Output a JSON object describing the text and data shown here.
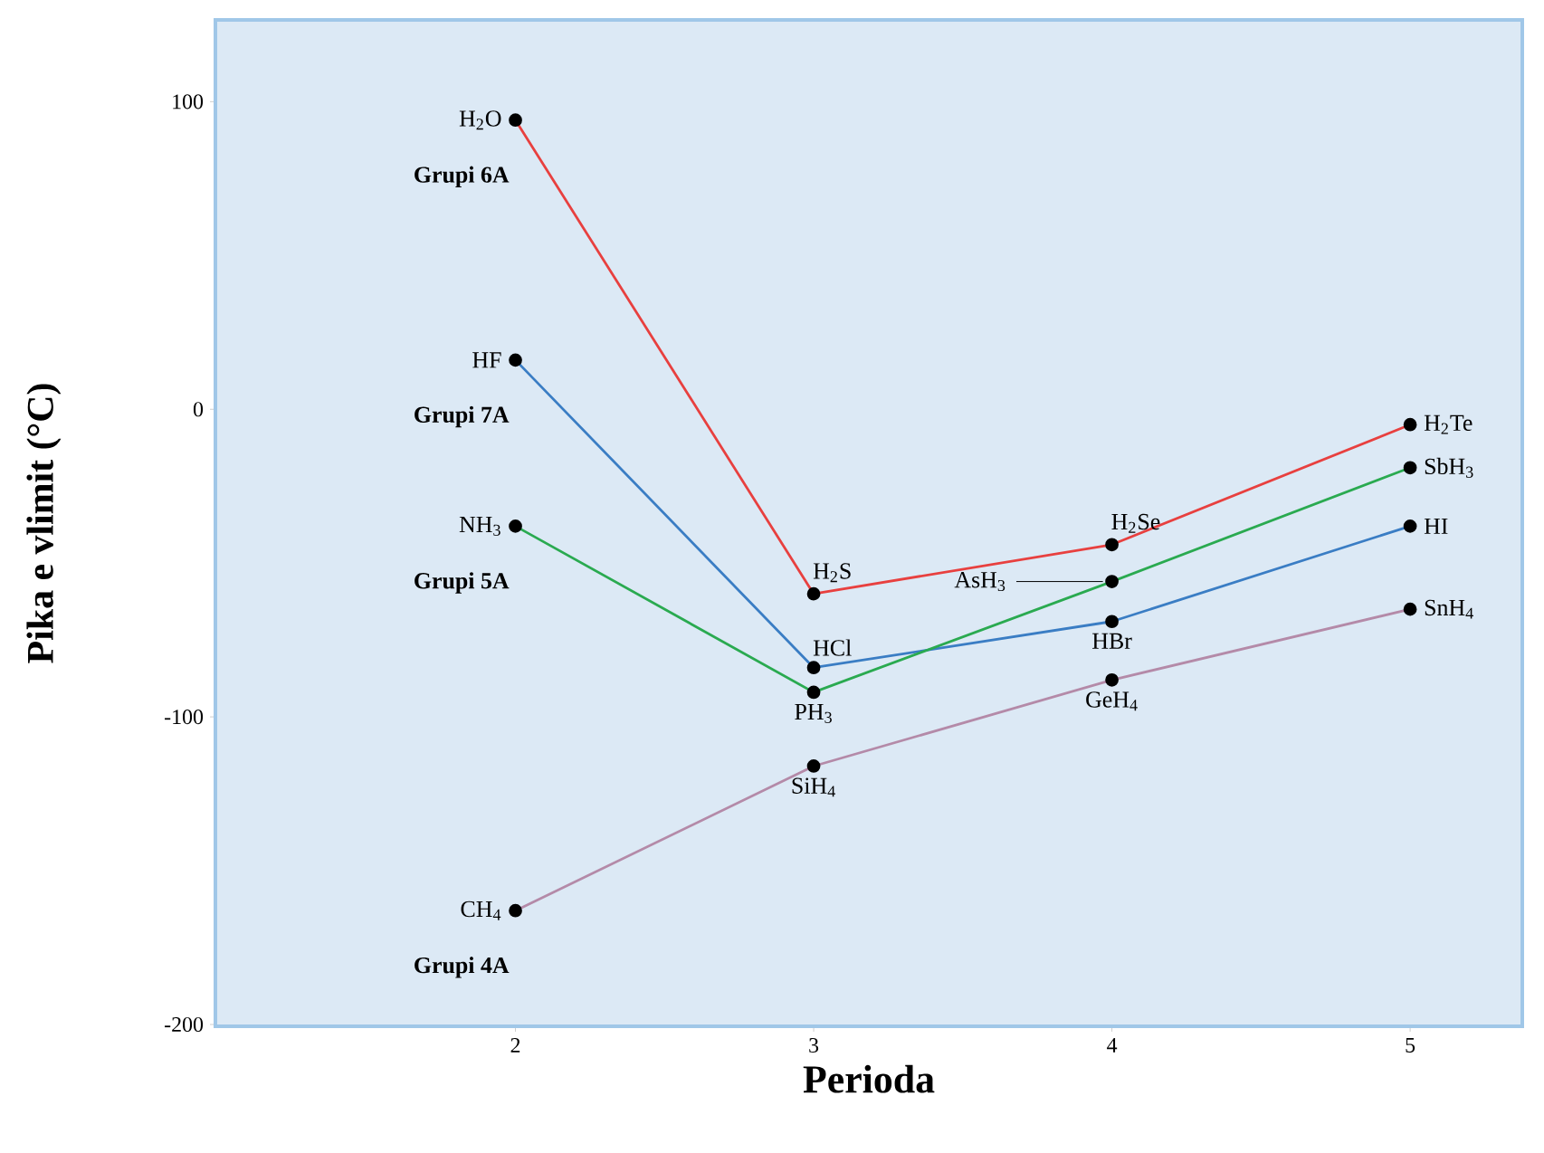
{
  "chart_data": {
    "type": "line",
    "xlabel": "Perioda",
    "ylabel": "Pika e vlimit (°C)",
    "x": [
      2,
      3,
      4,
      5
    ],
    "xlim": [
      1,
      5.37
    ],
    "ylim": [
      -200,
      126
    ],
    "xticks": [
      2,
      3,
      4,
      5
    ],
    "yticks": [
      -200,
      -100,
      0,
      100
    ],
    "marker": "circle",
    "series": [
      {
        "name": "Grupi 6A",
        "color": "#e8403f",
        "values": [
          94,
          -60,
          -44,
          -5
        ]
      },
      {
        "name": "Grupi 7A",
        "color": "#3a7dc4",
        "values": [
          16,
          -84,
          -69,
          -38
        ]
      },
      {
        "name": "Grupi 5A",
        "color": "#2aaa50",
        "values": [
          -38,
          -92,
          -56,
          -19
        ]
      },
      {
        "name": "Grupi 4A",
        "color": "#b48aa8",
        "values": [
          -163,
          -116,
          -88,
          -65
        ]
      }
    ],
    "annotations": [
      {
        "text": "H$_{2}$O",
        "x": 2,
        "y": 94
      },
      {
        "text": "HF",
        "x": 2,
        "y": 16
      },
      {
        "text": "NH$_{3}$",
        "x": 2,
        "y": -38
      },
      {
        "text": "CH$_{4}$",
        "x": 2,
        "y": -163
      },
      {
        "text": "H$_{2}$S",
        "x": 3,
        "y": -60
      },
      {
        "text": "HCl",
        "x": 3,
        "y": -84
      },
      {
        "text": "PH$_{3}$",
        "x": 3,
        "y": -92
      },
      {
        "text": "SiH$_{4}$",
        "x": 3,
        "y": -116
      },
      {
        "text": "H$_{2}$Se",
        "x": 4,
        "y": -44
      },
      {
        "text": "AsH$_{3}$",
        "x": 4,
        "y": -56
      },
      {
        "text": "HBr",
        "x": 4,
        "y": -69
      },
      {
        "text": "GeH$_{4}$",
        "x": 4,
        "y": -88
      },
      {
        "text": "H$_{2}$Te",
        "x": 5,
        "y": -5
      },
      {
        "text": "SbH$_{3}$",
        "x": 5,
        "y": -19
      },
      {
        "text": "HI",
        "x": 5,
        "y": -38
      },
      {
        "text": "SnH$_{4}$",
        "x": 5,
        "y": -65
      }
    ]
  }
}
